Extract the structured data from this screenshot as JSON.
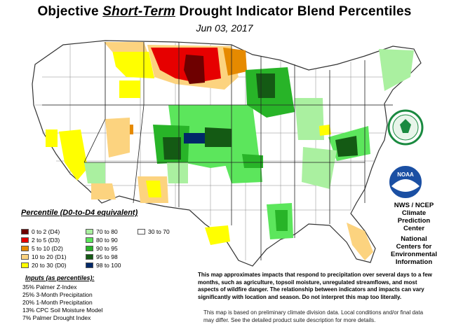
{
  "title": {
    "prefix": "Objective",
    "emphasis": "Short-Term",
    "suffix": "Drought Indicator Blend Percentiles"
  },
  "date": "Jun 03, 2017",
  "legend": {
    "title": "Percentile  (D0-to-D4 equivalent)",
    "items": [
      {
        "label": "0 to 2  (D4)",
        "color": "#6e0000"
      },
      {
        "label": "2 to 5  (D3)",
        "color": "#e60000"
      },
      {
        "label": "5 to 10  (D2)",
        "color": "#e68a00"
      },
      {
        "label": "10 to 20  (D1)",
        "color": "#fcd37f"
      },
      {
        "label": "20 to 30  (D0)",
        "color": "#ffff00"
      },
      {
        "label": "70 to 80",
        "color": "#aaf0a0"
      },
      {
        "label": "80 to 90",
        "color": "#5ce65c"
      },
      {
        "label": "90 to 95",
        "color": "#28b428"
      },
      {
        "label": "95 to 98",
        "color": "#145a14"
      },
      {
        "label": "98 to 100",
        "color": "#002868"
      },
      {
        "label": "30 to 70",
        "color": "#ffffff"
      }
    ]
  },
  "inputs": {
    "title": "Inputs (as percentiles):",
    "items": [
      "35%  Palmer Z-Index",
      "25%  3-Month Precipitation",
      "20%  1-Month Precipitation",
      "13%  CPC Soil Moisture Model",
      "  7%  Palmer Drought Index"
    ]
  },
  "note_main": "This map approximates impacts that respond to precipitation over several days to a few months, such as agriculture, topsoil moisture, unregulated streamflows, and most aspects of wildfire danger. The relationship between indicators and impacts can vary significantly with location and season. Do not interpret this map too literally.",
  "note_secondary": "This map is based on preliminary climate division data. Local conditions and/or final data may differ. See the detailed product suite description for more details.",
  "agency": {
    "line1": "NWS / NCEP",
    "line2": "Climate",
    "line3": "Prediction",
    "line4": "Center",
    "line5": "National",
    "line6": "Centers for",
    "line7": "Environmental",
    "line8": "Information"
  },
  "logos": {
    "noaa_text": "NOAA"
  }
}
